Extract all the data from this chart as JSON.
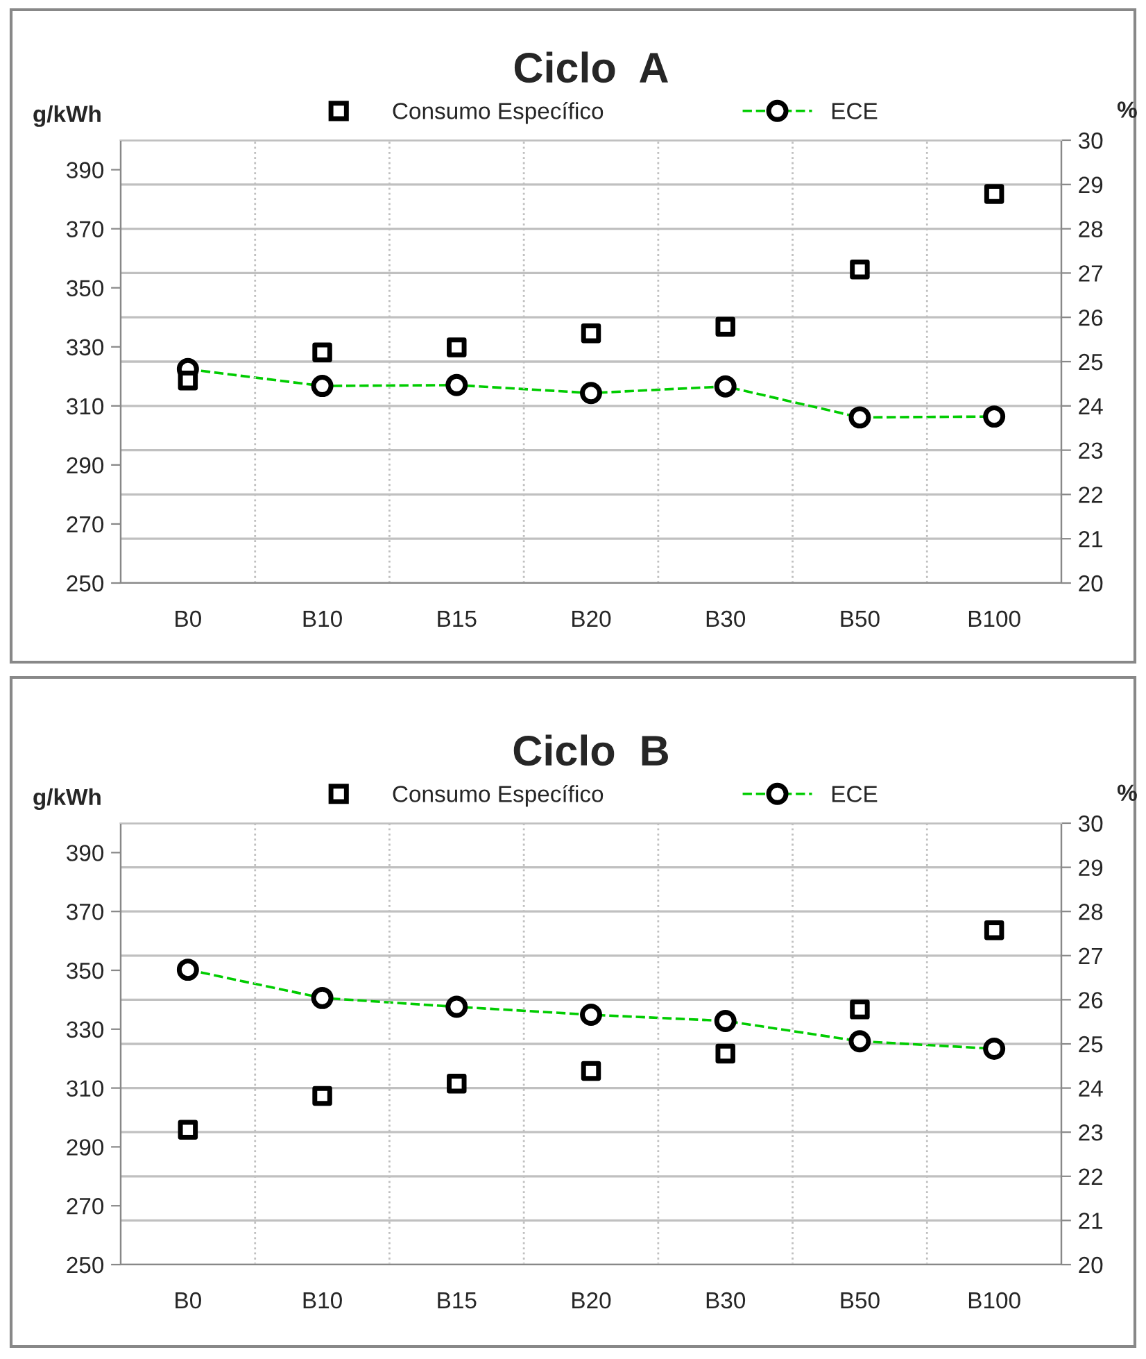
{
  "chart_data": [
    {
      "type": "scatter",
      "title": "Ciclo  A",
      "ylabel": "g/kWh",
      "y2label": "%",
      "categories": [
        "B0",
        "B10",
        "B15",
        "B20",
        "B30",
        "B50",
        "B100"
      ],
      "series": [
        {
          "name": "Consumo Específico",
          "marker": "square",
          "color": "#000000",
          "values": [
            318.6,
            328.1,
            329.8,
            334.6,
            336.8,
            356.2,
            381.8
          ]
        },
        {
          "name": "ECE",
          "type": "line",
          "axis": "y2",
          "marker": "circle",
          "line_style": "dashed",
          "color": "#00cc00",
          "values": [
            24.83,
            24.45,
            24.47,
            24.29,
            24.44,
            23.74,
            23.76
          ]
        }
      ],
      "ylim": [
        250,
        400
      ],
      "yticks": [
        250,
        270,
        290,
        310,
        330,
        350,
        370,
        390
      ],
      "y2lim": [
        20,
        30
      ],
      "y2ticks": [
        20,
        21,
        22,
        23,
        24,
        25,
        26,
        27,
        28,
        29,
        30
      ],
      "grid": true,
      "legend": "top"
    },
    {
      "type": "scatter",
      "title": "Ciclo  B",
      "ylabel": "g/kWh",
      "y2label": "%",
      "categories": [
        "B0",
        "B10",
        "B15",
        "B20",
        "B30",
        "B50",
        "B100"
      ],
      "series": [
        {
          "name": "Consumo Específico",
          "marker": "square",
          "color": "#000000",
          "values": [
            295.8,
            307.3,
            311.5,
            315.8,
            321.7,
            336.7,
            363.6
          ]
        },
        {
          "name": "ECE",
          "type": "line",
          "axis": "y2",
          "marker": "circle",
          "line_style": "dashed",
          "color": "#00cc00",
          "values": [
            26.68,
            26.04,
            25.84,
            25.66,
            25.52,
            25.06,
            24.89
          ]
        }
      ],
      "ylim": [
        250,
        400
      ],
      "yticks": [
        250,
        270,
        290,
        310,
        330,
        350,
        370,
        390
      ],
      "y2lim": [
        20,
        30
      ],
      "y2ticks": [
        20,
        21,
        22,
        23,
        24,
        25,
        26,
        27,
        28,
        29,
        30
      ],
      "grid": true,
      "legend": "top"
    }
  ]
}
